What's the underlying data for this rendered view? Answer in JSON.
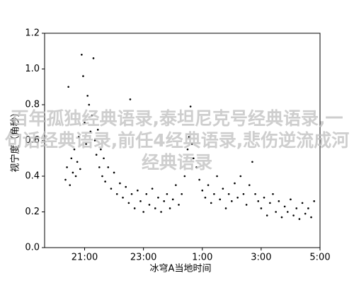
{
  "chart_data": {
    "type": "scatter",
    "xlabel": "冰穹A当地时间",
    "ylabel": "视宁度（角秒）",
    "color": "#000000",
    "xlim": [
      19.64,
      29
    ],
    "ylim": [
      0,
      1.2
    ],
    "xticks": [
      {
        "value": 21,
        "label": "21:00"
      },
      {
        "value": 23,
        "label": "23:00"
      },
      {
        "value": 25,
        "label": "1:00"
      },
      {
        "value": 27,
        "label": "3:00"
      },
      {
        "value": 29,
        "label": "5:00"
      }
    ],
    "yticks": [
      {
        "value": 0,
        "label": "0.0"
      },
      {
        "value": 0.2,
        "label": "0.2"
      },
      {
        "value": 0.4,
        "label": "0.4"
      },
      {
        "value": 0.6,
        "label": "0.6"
      },
      {
        "value": 0.8,
        "label": "0.8"
      },
      {
        "value": 1.0,
        "label": "1.0"
      },
      {
        "value": 1.2,
        "label": "1.2"
      }
    ],
    "x": [
      20.35,
      20.4,
      20.45,
      20.5,
      20.55,
      20.6,
      20.65,
      20.7,
      20.75,
      20.8,
      20.85,
      20.9,
      20.95,
      21.0,
      21.05,
      21.1,
      21.15,
      21.2,
      21.25,
      21.3,
      21.35,
      21.4,
      21.45,
      21.5,
      21.55,
      21.6,
      21.65,
      21.7,
      21.8,
      21.9,
      22.0,
      22.1,
      22.2,
      22.3,
      22.4,
      22.5,
      22.55,
      22.6,
      22.7,
      22.8,
      22.9,
      23.0,
      23.1,
      23.2,
      23.3,
      23.4,
      23.5,
      23.6,
      23.7,
      23.8,
      23.9,
      24.0,
      24.1,
      24.2,
      24.3,
      24.4,
      24.5,
      24.55,
      24.6,
      24.65,
      24.7,
      24.8,
      24.9,
      25.0,
      25.1,
      25.2,
      25.3,
      25.4,
      25.5,
      25.6,
      25.7,
      25.8,
      25.9,
      26.0,
      26.1,
      26.2,
      26.3,
      26.4,
      26.5,
      26.6,
      26.7,
      26.8,
      26.9,
      27.0,
      27.1,
      27.2,
      27.3,
      27.4,
      27.5,
      27.6,
      27.7,
      27.8,
      27.9,
      28.0,
      28.1,
      28.2,
      28.3,
      28.4,
      28.5,
      28.6,
      28.7,
      28.8
    ],
    "values": [
      0.38,
      0.45,
      0.9,
      0.35,
      0.5,
      0.42,
      0.55,
      0.4,
      0.48,
      0.62,
      0.44,
      1.08,
      0.96,
      0.7,
      0.58,
      0.85,
      0.8,
      0.65,
      0.74,
      1.06,
      0.6,
      0.52,
      0.66,
      0.45,
      0.55,
      0.4,
      0.5,
      0.37,
      0.45,
      0.33,
      0.42,
      0.3,
      0.36,
      0.28,
      0.34,
      0.25,
      0.83,
      0.3,
      0.22,
      0.32,
      0.26,
      0.2,
      0.3,
      0.24,
      0.33,
      0.22,
      0.28,
      0.2,
      0.26,
      0.3,
      0.22,
      0.27,
      0.35,
      0.24,
      0.3,
      0.4,
      0.55,
      0.62,
      0.79,
      0.58,
      0.5,
      0.45,
      0.38,
      0.32,
      0.28,
      0.35,
      0.25,
      0.3,
      0.4,
      0.27,
      0.33,
      0.22,
      0.3,
      0.26,
      0.36,
      0.28,
      0.4,
      0.3,
      0.24,
      0.35,
      0.48,
      0.3,
      0.26,
      0.22,
      0.28,
      0.18,
      0.25,
      0.3,
      0.2,
      0.26,
      0.17,
      0.23,
      0.2,
      0.27,
      0.18,
      0.22,
      0.16,
      0.25,
      0.19,
      0.22,
      0.17,
      0.26
    ]
  },
  "watermark": "百年孤独经典语录,泰坦尼克号经典语录,一句话经典语录,前任4经典语录,悲伤逆流成河经典语录"
}
